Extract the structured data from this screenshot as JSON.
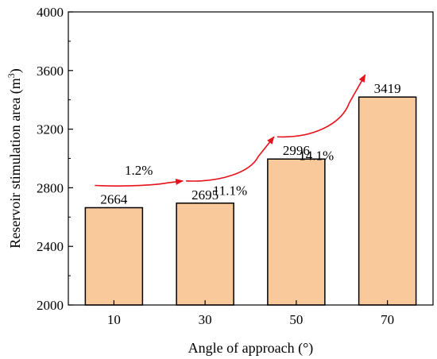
{
  "chart_data": {
    "type": "bar",
    "categories": [
      "10",
      "30",
      "50",
      "70"
    ],
    "values": [
      2664,
      2695,
      2996,
      3419
    ],
    "data_labels": [
      "2664",
      "2695",
      "2996",
      "3419"
    ],
    "xlabel": "Angle of approach (°)",
    "ylabel_main": "Reservoir stimulation area (m",
    "ylabel_sup": "3",
    "ylabel_close": ")",
    "ylim": [
      2000,
      4000
    ],
    "yticks": [
      2000,
      2400,
      2800,
      3200,
      3600,
      4000
    ],
    "grid": false,
    "legend": "none",
    "bar_color": "#FAC99B",
    "bar_edge_color": "#000000",
    "annotations": [
      {
        "from": 0,
        "to": 1,
        "label": "1.2%"
      },
      {
        "from": 1,
        "to": 2,
        "label": "11.1%"
      },
      {
        "from": 2,
        "to": 3,
        "label": "14.1%"
      }
    ],
    "arrow_color": "#E8121B"
  }
}
